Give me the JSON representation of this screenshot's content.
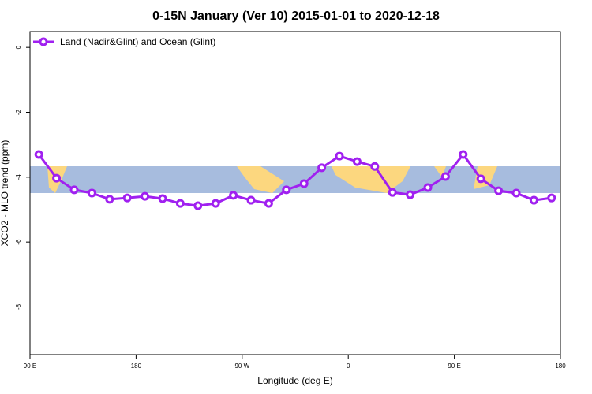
{
  "chart_data": {
    "type": "line",
    "title": "0-15N January (Ver 10)   2015-01-01 to 2020-12-18",
    "x_label": "Longitude (deg E)",
    "y_label": "XCO2 - MLO trend (ppm)",
    "x": [
      97.5,
      112.5,
      127.5,
      142.5,
      157.5,
      172.5,
      187.5,
      202.5,
      217.5,
      232.5,
      247.5,
      262.5,
      277.5,
      292.5,
      307.5,
      322.5,
      337.5,
      352.5,
      367.5,
      382.5,
      397.5,
      412.5,
      427.5,
      442.5,
      457.5,
      472.5,
      487.5,
      502.5,
      517.5,
      532.5
    ],
    "series": [
      {
        "name": "Land (Nadir&Glint) and Ocean (Glint)",
        "color": "#a020f0",
        "values": [
          -3.3,
          -4.03,
          -4.39,
          -4.49,
          -4.68,
          -4.64,
          -4.59,
          -4.66,
          -4.81,
          -4.88,
          -4.81,
          -4.56,
          -4.71,
          -4.81,
          -4.39,
          -4.2,
          -3.71,
          -3.35,
          -3.52,
          -3.67,
          -4.47,
          -4.54,
          -4.32,
          -3.98,
          -3.3,
          -4.05,
          -4.42,
          -4.49,
          -4.71,
          -4.64
        ]
      }
    ],
    "xlim": [
      90,
      540
    ],
    "xticks": [
      {
        "value": 90,
        "label": "90 E"
      },
      {
        "value": 180,
        "label": "180"
      },
      {
        "value": 270,
        "label": "90 W"
      },
      {
        "value": 360,
        "label": "0"
      },
      {
        "value": 450,
        "label": "90 E"
      },
      {
        "value": 540,
        "label": "180"
      }
    ],
    "ylim": [
      -9.47,
      0.49
    ],
    "yticks": [
      0,
      -2,
      -4,
      -6,
      -8
    ],
    "legend_position": "top-left"
  }
}
